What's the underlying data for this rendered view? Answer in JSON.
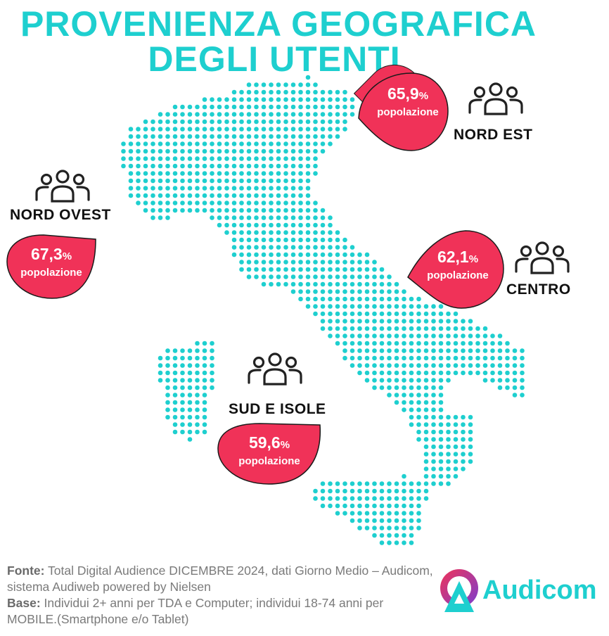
{
  "title": {
    "line1": "PROVENIENZA GEOGRAFICA",
    "line2": "DEGLI UTENTI"
  },
  "colors": {
    "accent": "#1ecfcf",
    "bubble": "#f03258",
    "text": "#111111"
  },
  "regions": [
    {
      "id": "nord-est",
      "label": "NORD EST",
      "value": "65,9",
      "unit": "%",
      "sub": "popolazione",
      "icon": "people-group-icon"
    },
    {
      "id": "nord-ovest",
      "label": "NORD OVEST",
      "value": "67,3",
      "unit": "%",
      "sub": "popolazione",
      "icon": "people-group-icon"
    },
    {
      "id": "centro",
      "label": "CENTRO",
      "value": "62,1",
      "unit": "%",
      "sub": "popolazione",
      "icon": "people-group-icon"
    },
    {
      "id": "sud-isole",
      "label": "SUD E ISOLE",
      "value": "59,6",
      "unit": "%",
      "sub": "popolazione",
      "icon": "people-group-icon"
    }
  ],
  "footer": {
    "fonte_label": "Fonte:",
    "fonte_text": " Total Digital Audience DICEMBRE 2024, dati Giorno Medio – Audicom, sistema Audiweb powered by Nielsen",
    "base_label": "Base:",
    "base_text": "  Individui 2+ anni per TDA e Computer; individui 18-74 anni per MOBILE.(Smartphone e/o Tablet)"
  },
  "logo": {
    "name": "Audicom",
    "icon": "audicom-logo-icon"
  }
}
